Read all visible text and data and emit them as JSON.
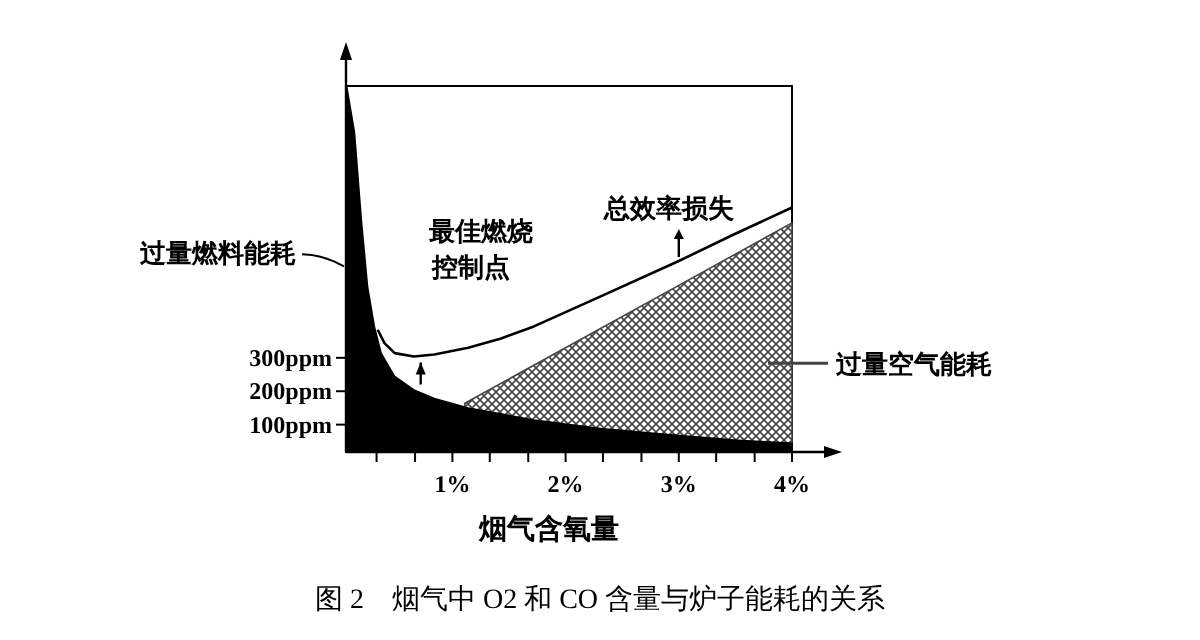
{
  "chart_data": {
    "type": "area",
    "xlabel": "烟气含氧量",
    "xlim": [
      0.06,
      4.0
    ],
    "ylim": [
      18,
      1114
    ],
    "xticks": [
      {
        "value": 0.33,
        "label": null
      },
      {
        "value": 0.67,
        "label": null
      },
      {
        "value": 1,
        "label": "1%"
      },
      {
        "value": 1.33,
        "label": null
      },
      {
        "value": 1.67,
        "label": null
      },
      {
        "value": 2,
        "label": "2%"
      },
      {
        "value": 2.33,
        "label": null
      },
      {
        "value": 2.67,
        "label": null
      },
      {
        "value": 3,
        "label": "3%"
      },
      {
        "value": 3.33,
        "label": null
      },
      {
        "value": 3.67,
        "label": null
      },
      {
        "value": 4,
        "label": "4%"
      }
    ],
    "yticks": [
      {
        "value": 100,
        "label": "100ppm"
      },
      {
        "value": 200,
        "label": "200ppm"
      },
      {
        "value": 300,
        "label": "300ppm"
      }
    ],
    "series": [
      {
        "name": "过量空气能耗",
        "color": "#444444",
        "x": [
          1.11,
          2,
          3,
          4
        ],
        "values": [
          164,
          330,
          517,
          704
        ]
      },
      {
        "name": "过量燃料能耗",
        "color": "#000000",
        "x": [
          0.065,
          0.135,
          0.195,
          0.25,
          0.31,
          0.37,
          0.49,
          0.66,
          0.84,
          1.14,
          1.72,
          2.31,
          2.9,
          3.49,
          4.0
        ],
        "values": [
          1114,
          974,
          714,
          514,
          394,
          314,
          244,
          204,
          178,
          150,
          114,
          88,
          70,
          54,
          44
        ]
      },
      {
        "name": "总效率损失",
        "type": "line",
        "color": "#000000",
        "x": [
          0.34,
          0.4,
          0.49,
          0.66,
          0.84,
          1.14,
          1.43,
          1.72,
          2.31,
          3.0,
          3.49,
          4.0
        ],
        "values": [
          384,
          344,
          314,
          304,
          310,
          330,
          358,
          394,
          484,
          590,
          670,
          750
        ]
      }
    ],
    "annotations": [
      {
        "text": "最佳燃烧控制点",
        "x": 0.72,
        "y": 304
      },
      "图 2　烟气中 O2 和 CO 含量与炉子能耗的关系"
    ]
  }
}
